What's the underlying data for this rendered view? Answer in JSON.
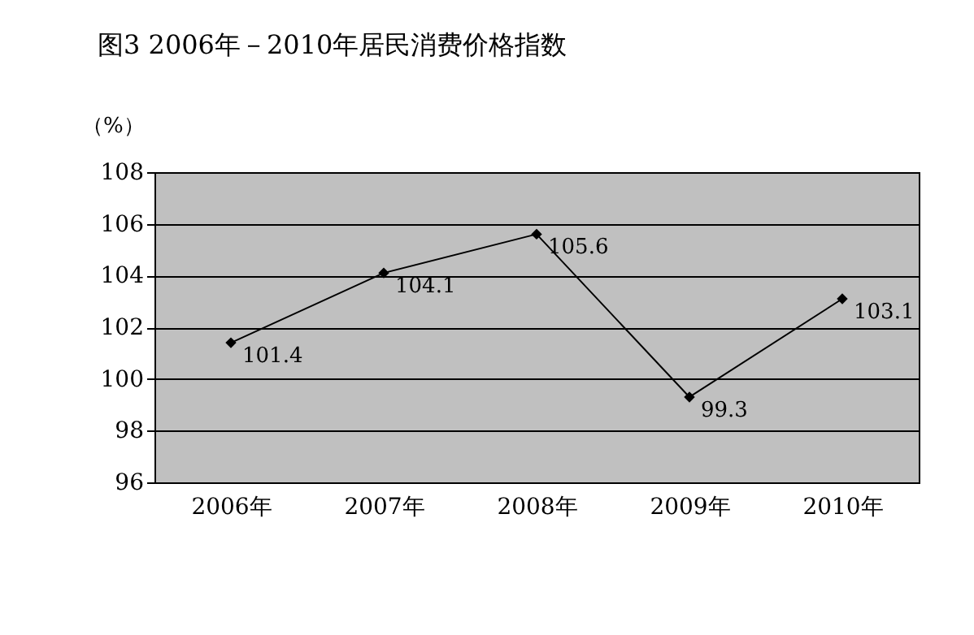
{
  "chart_data": {
    "type": "line",
    "title": "图3   2006年－2010年居民消费价格指数",
    "ylabel": "（%）",
    "categories": [
      "2006年",
      "2007年",
      "2008年",
      "2009年",
      "2010年"
    ],
    "series": [
      {
        "color": "#000000",
        "values": [
          101.4,
          104.1,
          105.6,
          99.3,
          103.1
        ]
      }
    ],
    "ylim": [
      96,
      108
    ],
    "yticks": [
      96,
      98,
      100,
      102,
      104,
      106,
      108
    ],
    "grid": "y",
    "marker": "diamond",
    "line_style": "solid",
    "data_labels": true,
    "legend": false
  }
}
